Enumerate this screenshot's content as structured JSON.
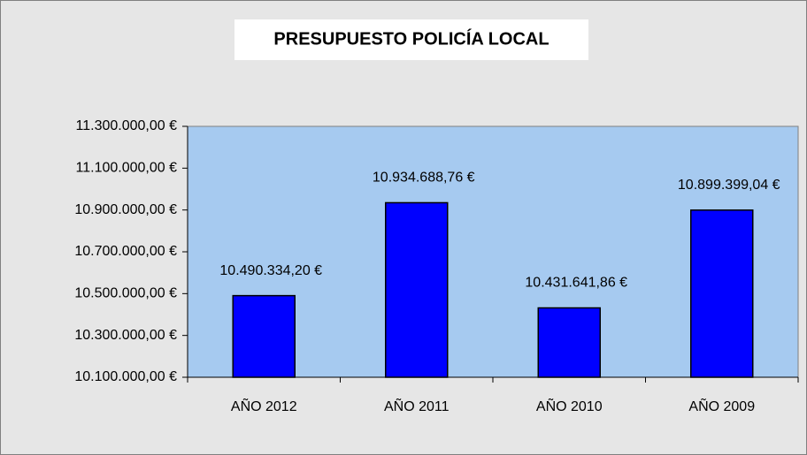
{
  "chart_data": {
    "type": "bar",
    "title": "PRESUPUESTO POLICÍA LOCAL",
    "categories": [
      "AÑO 2012",
      "AÑO 2011",
      "AÑO 2010",
      "AÑO 2009"
    ],
    "values": [
      10490334.2,
      10934688.76,
      10431641.86,
      10899399.04
    ],
    "value_labels": [
      "10.490.334,20 €",
      "10.934.688,76 €",
      "10.431.641,86 €",
      "10.899.399,04 €"
    ],
    "color": "#0000ff",
    "ylim": [
      10100000,
      11300000
    ],
    "yticks": [
      {
        "value": 10100000,
        "label": "10.100.000,00 €"
      },
      {
        "value": 10300000,
        "label": "10.300.000,00 €"
      },
      {
        "value": 10500000,
        "label": "10.500.000,00 €"
      },
      {
        "value": 10700000,
        "label": "10.700.000,00 €"
      },
      {
        "value": 10900000,
        "label": "10.900.000,00 €"
      },
      {
        "value": 11100000,
        "label": "11.100.000,00 €"
      },
      {
        "value": 11300000,
        "label": "11.300.000,00 €"
      }
    ],
    "grid": false
  }
}
